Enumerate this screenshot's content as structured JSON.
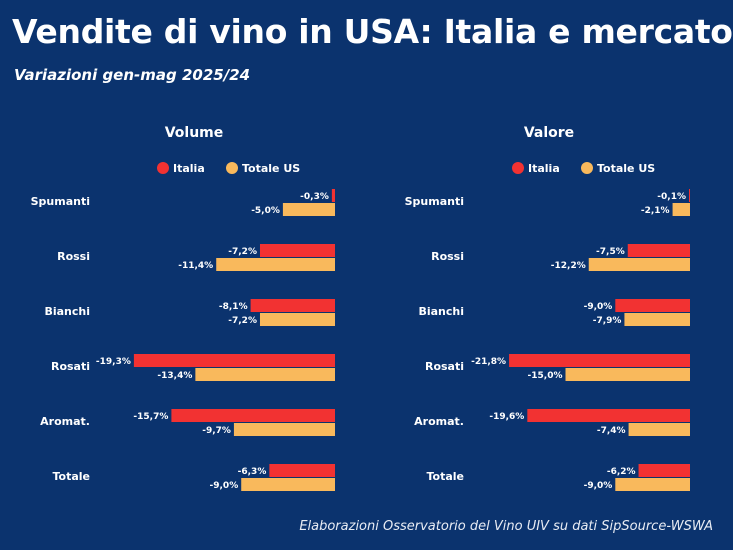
{
  "title": "Vendite di vino in USA: Italia e mercato",
  "subtitle": "Variazioni gen-mag 2025/24",
  "source": "Elaborazioni Osservatorio del Vino UIV su dati SipSource-WSWA",
  "colors": {
    "background": "#0b336e",
    "italia": "#f23232",
    "totale_us": "#f9b95c"
  },
  "chart_data": [
    {
      "type": "bar",
      "orientation": "horizontal",
      "title": "Volume",
      "categories": [
        "Spumanti",
        "Rossi",
        "Bianchi",
        "Rosati",
        "Aromat.",
        "Totale"
      ],
      "series": [
        {
          "name": "Italia",
          "values": [
            -0.3,
            -7.2,
            -8.1,
            -19.3,
            -15.7,
            -6.3
          ],
          "labels": [
            "-0,3%",
            "-7,2%",
            "-8,1%",
            "-19,3%",
            "-15,7%",
            "-6,3%"
          ]
        },
        {
          "name": "Totale US",
          "values": [
            -5.0,
            -11.4,
            -7.2,
            -13.4,
            -9.7,
            -9.0
          ],
          "labels": [
            "-5,0%",
            "-11,4%",
            "-7,2%",
            "-13,4%",
            "-9,7%",
            "-9,0%"
          ]
        }
      ],
      "legend": "top",
      "grid": false
    },
    {
      "type": "bar",
      "orientation": "horizontal",
      "title": "Valore",
      "categories": [
        "Spumanti",
        "Rossi",
        "Bianchi",
        "Rosati",
        "Aromat.",
        "Totale"
      ],
      "series": [
        {
          "name": "Italia",
          "values": [
            -0.1,
            -7.5,
            -9.0,
            -21.8,
            -19.6,
            -6.2
          ],
          "labels": [
            "-0,1%",
            "-7,5%",
            "-9,0%",
            "-21,8%",
            "-19,6%",
            "-6,2%"
          ]
        },
        {
          "name": "Totale US",
          "values": [
            -2.1,
            -12.2,
            -7.9,
            -15.0,
            -7.4,
            -9.0
          ],
          "labels": [
            "-2,1%",
            "-12,2%",
            "-7,9%",
            "-15,0%",
            "-7,4%",
            "-9,0%"
          ]
        }
      ],
      "legend": "top",
      "grid": false
    }
  ]
}
